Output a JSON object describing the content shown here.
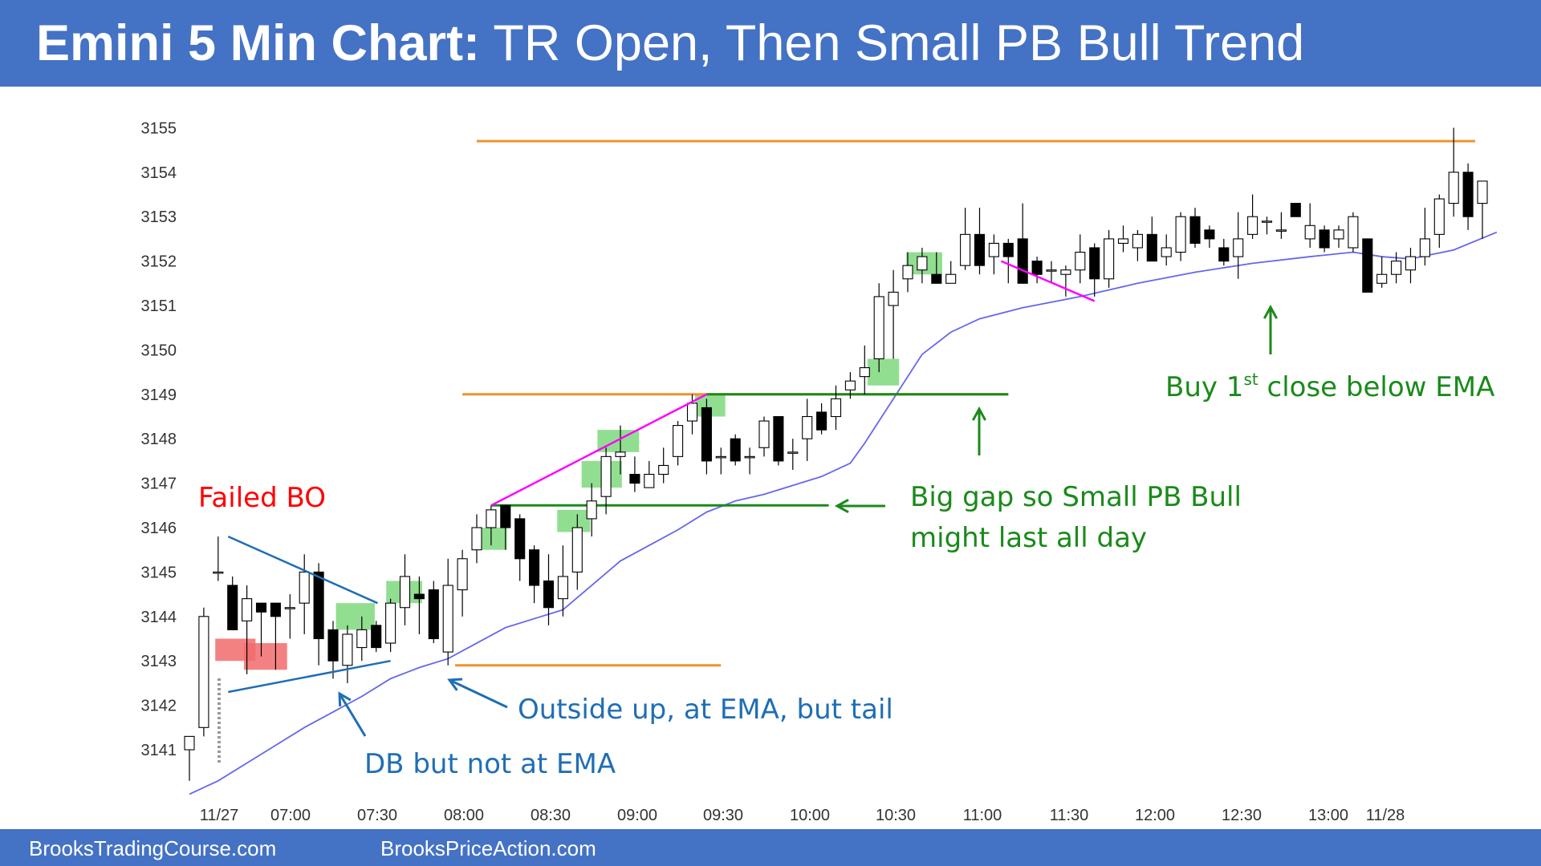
{
  "title": {
    "bold": "Emini 5 Min Chart:",
    "rest": "TR Open, Then Small PB Bull Trend"
  },
  "footer": {
    "left": "BrooksTradingCourse.com",
    "right": "BrooksPriceAction.com"
  },
  "colors": {
    "banner": "#4472c4",
    "ema": "#6666ee",
    "orange": "#f0922c",
    "green": "#1a8a1a",
    "magenta": "#ff00ff",
    "blue_annotation": "#1f6eb5",
    "red_text": "#ff0000",
    "green_box": "#7ed87e",
    "red_box": "#f26b6b"
  },
  "chart_data": {
    "type": "candlestick",
    "ylim": [
      3140.5,
      3155.5
    ],
    "y_ticks": [
      3141,
      3142,
      3143,
      3144,
      3145,
      3146,
      3147,
      3148,
      3149,
      3150,
      3151,
      3152,
      3153,
      3154,
      3155
    ],
    "x_tick_labels": [
      "11/27",
      "07:00",
      "07:30",
      "08:00",
      "08:30",
      "09:00",
      "09:30",
      "10:00",
      "10:30",
      "11:00",
      "11:30",
      "12:00",
      "12:30",
      "13:00",
      "11/28"
    ],
    "grid": false,
    "candles": [
      {
        "o": 3141.0,
        "h": 3141.3,
        "l": 3140.3,
        "c": 3141.3
      },
      {
        "o": 3141.5,
        "h": 3144.2,
        "l": 3141.3,
        "c": 3144.0
      },
      {
        "o": 3145.0,
        "h": 3145.8,
        "l": 3144.8,
        "c": 3145.0
      },
      {
        "o": 3144.7,
        "h": 3144.9,
        "l": 3143.7,
        "c": 3143.7
      },
      {
        "o": 3143.9,
        "h": 3144.7,
        "l": 3142.7,
        "c": 3144.4
      },
      {
        "o": 3144.3,
        "h": 3144.3,
        "l": 3143.1,
        "c": 3144.1
      },
      {
        "o": 3144.3,
        "h": 3144.3,
        "l": 3142.8,
        "c": 3144.0
      },
      {
        "o": 3144.2,
        "h": 3144.5,
        "l": 3143.5,
        "c": 3144.2
      },
      {
        "o": 3144.3,
        "h": 3145.4,
        "l": 3143.6,
        "c": 3145.0
      },
      {
        "o": 3145.0,
        "h": 3145.2,
        "l": 3142.9,
        "c": 3143.5
      },
      {
        "o": 3143.7,
        "h": 3143.9,
        "l": 3142.6,
        "c": 3143.0
      },
      {
        "o": 3142.9,
        "h": 3143.8,
        "l": 3142.5,
        "c": 3143.6
      },
      {
        "o": 3143.3,
        "h": 3144.0,
        "l": 3143.0,
        "c": 3143.7
      },
      {
        "o": 3143.8,
        "h": 3143.9,
        "l": 3143.2,
        "c": 3143.3
      },
      {
        "o": 3143.4,
        "h": 3144.4,
        "l": 3143.2,
        "c": 3144.3
      },
      {
        "o": 3144.2,
        "h": 3145.4,
        "l": 3143.8,
        "c": 3144.9
      },
      {
        "o": 3144.5,
        "h": 3144.9,
        "l": 3143.6,
        "c": 3144.4
      },
      {
        "o": 3144.6,
        "h": 3144.8,
        "l": 3143.4,
        "c": 3143.5
      },
      {
        "o": 3143.2,
        "h": 3145.3,
        "l": 3142.9,
        "c": 3144.7
      },
      {
        "o": 3144.6,
        "h": 3145.5,
        "l": 3144.0,
        "c": 3145.3
      },
      {
        "o": 3145.5,
        "h": 3146.3,
        "l": 3145.2,
        "c": 3146.0
      },
      {
        "o": 3146.0,
        "h": 3146.5,
        "l": 3145.6,
        "c": 3146.4
      },
      {
        "o": 3146.5,
        "h": 3146.5,
        "l": 3145.5,
        "c": 3146.0
      },
      {
        "o": 3146.2,
        "h": 3146.3,
        "l": 3144.8,
        "c": 3145.3
      },
      {
        "o": 3145.5,
        "h": 3145.6,
        "l": 3144.3,
        "c": 3144.7
      },
      {
        "o": 3144.8,
        "h": 3145.4,
        "l": 3143.8,
        "c": 3144.2
      },
      {
        "o": 3144.4,
        "h": 3145.6,
        "l": 3144.0,
        "c": 3144.9
      },
      {
        "o": 3145.0,
        "h": 3146.3,
        "l": 3144.6,
        "c": 3146.0
      },
      {
        "o": 3146.2,
        "h": 3147.0,
        "l": 3145.8,
        "c": 3146.6
      },
      {
        "o": 3146.7,
        "h": 3147.8,
        "l": 3146.3,
        "c": 3147.6
      },
      {
        "o": 3147.6,
        "h": 3148.3,
        "l": 3147.2,
        "c": 3147.7
      },
      {
        "o": 3147.2,
        "h": 3147.6,
        "l": 3146.8,
        "c": 3147.0
      },
      {
        "o": 3146.9,
        "h": 3147.5,
        "l": 3146.9,
        "c": 3147.2
      },
      {
        "o": 3147.2,
        "h": 3147.8,
        "l": 3147.0,
        "c": 3147.4
      },
      {
        "o": 3147.6,
        "h": 3148.4,
        "l": 3147.4,
        "c": 3148.3
      },
      {
        "o": 3148.4,
        "h": 3149.0,
        "l": 3148.1,
        "c": 3148.8
      },
      {
        "o": 3148.7,
        "h": 3148.9,
        "l": 3147.2,
        "c": 3147.5
      },
      {
        "o": 3147.6,
        "h": 3147.8,
        "l": 3147.2,
        "c": 3147.6
      },
      {
        "o": 3148.0,
        "h": 3148.1,
        "l": 3147.4,
        "c": 3147.5
      },
      {
        "o": 3147.6,
        "h": 3147.8,
        "l": 3147.2,
        "c": 3147.6
      },
      {
        "o": 3147.8,
        "h": 3148.5,
        "l": 3147.6,
        "c": 3148.4
      },
      {
        "o": 3148.5,
        "h": 3148.5,
        "l": 3147.4,
        "c": 3147.5
      },
      {
        "o": 3147.7,
        "h": 3148.0,
        "l": 3147.3,
        "c": 3147.7
      },
      {
        "o": 3148.0,
        "h": 3148.9,
        "l": 3147.5,
        "c": 3148.5
      },
      {
        "o": 3148.6,
        "h": 3148.8,
        "l": 3148.1,
        "c": 3148.2
      },
      {
        "o": 3148.5,
        "h": 3149.2,
        "l": 3148.2,
        "c": 3148.9
      },
      {
        "o": 3149.1,
        "h": 3149.5,
        "l": 3148.9,
        "c": 3149.3
      },
      {
        "o": 3149.4,
        "h": 3150.1,
        "l": 3149.0,
        "c": 3149.6
      },
      {
        "o": 3149.8,
        "h": 3151.5,
        "l": 3149.5,
        "c": 3151.2
      },
      {
        "o": 3151.0,
        "h": 3151.8,
        "l": 3149.8,
        "c": 3151.3
      },
      {
        "o": 3151.6,
        "h": 3152.2,
        "l": 3151.3,
        "c": 3151.9
      },
      {
        "o": 3151.8,
        "h": 3152.3,
        "l": 3151.5,
        "c": 3152.1
      },
      {
        "o": 3151.7,
        "h": 3152.2,
        "l": 3151.5,
        "c": 3151.5
      },
      {
        "o": 3151.5,
        "h": 3152.0,
        "l": 3151.5,
        "c": 3151.7
      },
      {
        "o": 3151.9,
        "h": 3153.2,
        "l": 3151.8,
        "c": 3152.6
      },
      {
        "o": 3152.6,
        "h": 3153.2,
        "l": 3151.7,
        "c": 3151.9
      },
      {
        "o": 3152.1,
        "h": 3152.6,
        "l": 3151.7,
        "c": 3152.4
      },
      {
        "o": 3152.4,
        "h": 3152.5,
        "l": 3151.5,
        "c": 3152.1
      },
      {
        "o": 3152.5,
        "h": 3153.3,
        "l": 3151.5,
        "c": 3151.5
      },
      {
        "o": 3152.0,
        "h": 3152.1,
        "l": 3151.5,
        "c": 3151.7
      },
      {
        "o": 3151.8,
        "h": 3152.0,
        "l": 3151.5,
        "c": 3151.8
      },
      {
        "o": 3151.7,
        "h": 3151.9,
        "l": 3151.2,
        "c": 3151.8
      },
      {
        "o": 3151.8,
        "h": 3152.6,
        "l": 3151.5,
        "c": 3152.2
      },
      {
        "o": 3152.3,
        "h": 3152.4,
        "l": 3151.2,
        "c": 3151.6
      },
      {
        "o": 3151.6,
        "h": 3152.7,
        "l": 3151.4,
        "c": 3152.5
      },
      {
        "o": 3152.4,
        "h": 3152.8,
        "l": 3152.2,
        "c": 3152.5
      },
      {
        "o": 3152.3,
        "h": 3152.7,
        "l": 3152.0,
        "c": 3152.6
      },
      {
        "o": 3152.6,
        "h": 3153.0,
        "l": 3152.0,
        "c": 3152.0
      },
      {
        "o": 3152.1,
        "h": 3152.6,
        "l": 3151.9,
        "c": 3152.3
      },
      {
        "o": 3152.2,
        "h": 3153.1,
        "l": 3152.0,
        "c": 3153.0
      },
      {
        "o": 3153.0,
        "h": 3153.2,
        "l": 3152.3,
        "c": 3152.4
      },
      {
        "o": 3152.7,
        "h": 3152.8,
        "l": 3152.3,
        "c": 3152.5
      },
      {
        "o": 3152.3,
        "h": 3152.5,
        "l": 3151.9,
        "c": 3152.0
      },
      {
        "o": 3152.1,
        "h": 3153.1,
        "l": 3151.6,
        "c": 3152.5
      },
      {
        "o": 3152.6,
        "h": 3153.5,
        "l": 3152.5,
        "c": 3153.0
      },
      {
        "o": 3152.9,
        "h": 3153.0,
        "l": 3152.6,
        "c": 3152.9
      },
      {
        "o": 3152.7,
        "h": 3153.1,
        "l": 3152.5,
        "c": 3152.7
      },
      {
        "o": 3153.3,
        "h": 3153.3,
        "l": 3153.0,
        "c": 3153.0
      },
      {
        "o": 3152.5,
        "h": 3153.3,
        "l": 3152.3,
        "c": 3152.8
      },
      {
        "o": 3152.7,
        "h": 3152.8,
        "l": 3152.2,
        "c": 3152.3
      },
      {
        "o": 3152.5,
        "h": 3152.8,
        "l": 3152.3,
        "c": 3152.7
      },
      {
        "o": 3152.3,
        "h": 3153.1,
        "l": 3152.2,
        "c": 3153.0
      },
      {
        "o": 3152.5,
        "h": 3152.5,
        "l": 3151.3,
        "c": 3151.3
      },
      {
        "o": 3151.5,
        "h": 3152.1,
        "l": 3151.4,
        "c": 3151.7
      },
      {
        "o": 3151.7,
        "h": 3152.2,
        "l": 3151.5,
        "c": 3152.0
      },
      {
        "o": 3151.8,
        "h": 3152.3,
        "l": 3151.5,
        "c": 3152.1
      },
      {
        "o": 3152.1,
        "h": 3153.2,
        "l": 3151.9,
        "c": 3152.5
      },
      {
        "o": 3152.6,
        "h": 3153.5,
        "l": 3152.3,
        "c": 3153.4
      },
      {
        "o": 3153.3,
        "h": 3155.0,
        "l": 3153.0,
        "c": 3154.0
      },
      {
        "o": 3154.0,
        "h": 3154.2,
        "l": 3152.7,
        "c": 3153.0
      },
      {
        "o": 3153.3,
        "h": 3153.8,
        "l": 3152.5,
        "c": 3153.8
      }
    ],
    "ema": [
      [
        0,
        3140.0
      ],
      [
        2,
        3140.3
      ],
      [
        4,
        3140.7
      ],
      [
        6,
        3141.1
      ],
      [
        8,
        3141.5
      ],
      [
        10,
        3141.85
      ],
      [
        12,
        3142.2
      ],
      [
        14,
        3142.6
      ],
      [
        16,
        3142.85
      ],
      [
        18,
        3143.05
      ],
      [
        20,
        3143.4
      ],
      [
        22,
        3143.75
      ],
      [
        24,
        3143.95
      ],
      [
        26,
        3144.15
      ],
      [
        28,
        3144.7
      ],
      [
        30,
        3145.25
      ],
      [
        32,
        3145.6
      ],
      [
        34,
        3145.95
      ],
      [
        36,
        3146.35
      ],
      [
        38,
        3146.6
      ],
      [
        40,
        3146.75
      ],
      [
        42,
        3146.95
      ],
      [
        44,
        3147.15
      ],
      [
        46,
        3147.45
      ],
      [
        47,
        3147.9
      ],
      [
        49,
        3148.9
      ],
      [
        51,
        3149.9
      ],
      [
        53,
        3150.4
      ],
      [
        55,
        3150.7
      ],
      [
        58,
        3150.95
      ],
      [
        62,
        3151.2
      ],
      [
        66,
        3151.5
      ],
      [
        70,
        3151.75
      ],
      [
        74,
        3151.95
      ],
      [
        78,
        3152.1
      ],
      [
        81,
        3152.2
      ],
      [
        83,
        3152.1
      ],
      [
        85,
        3152.05
      ],
      [
        88,
        3152.25
      ],
      [
        91,
        3152.65
      ]
    ],
    "levels": [
      {
        "price": 3154.7,
        "from": 20,
        "to": 89.5,
        "color": "orange"
      },
      {
        "price": 3149.0,
        "from": 19,
        "to": 57,
        "color": "orange"
      },
      {
        "price": 3142.9,
        "from": 18.5,
        "to": 37,
        "color": "orange"
      },
      {
        "price": 3149.0,
        "from": 36,
        "to": 57,
        "color": "green"
      },
      {
        "price": 3146.5,
        "from": 21,
        "to": 44.5,
        "color": "green"
      }
    ],
    "green_boxes": [
      {
        "from": 10.2,
        "to": 12.9,
        "lo": 3143.7,
        "hi": 3144.3
      },
      {
        "from": 13.7,
        "to": 16.2,
        "lo": 3144.3,
        "hi": 3144.8
      },
      {
        "from": 19.8,
        "to": 22.1,
        "lo": 3145.5,
        "hi": 3146.0
      },
      {
        "from": 25.6,
        "to": 27.9,
        "lo": 3145.9,
        "hi": 3146.4
      },
      {
        "from": 27.3,
        "to": 30.1,
        "lo": 3146.9,
        "hi": 3147.5
      },
      {
        "from": 28.4,
        "to": 31.3,
        "lo": 3147.7,
        "hi": 3148.2
      },
      {
        "from": 35.2,
        "to": 37.3,
        "lo": 3148.5,
        "hi": 3149.0
      },
      {
        "from": 47.2,
        "to": 49.4,
        "lo": 3149.2,
        "hi": 3149.8
      },
      {
        "from": 49.9,
        "to": 52.4,
        "lo": 3151.7,
        "hi": 3152.2
      }
    ],
    "red_boxes": [
      {
        "from": 1.8,
        "to": 4.6,
        "lo": 3143.0,
        "hi": 3143.5
      },
      {
        "from": 3.8,
        "to": 6.8,
        "lo": 3142.8,
        "hi": 3143.4
      }
    ],
    "triangle": [
      [
        2.7,
        3145.8
      ],
      [
        2.7,
        3142.3
      ],
      [
        14.0,
        3143.0
      ],
      [
        13.1,
        3144.3
      ]
    ],
    "magenta_lines": [
      {
        "from": [
          21.0,
          3146.5
        ],
        "to": [
          36.0,
          3149.0
        ]
      },
      {
        "from": [
          56.5,
          3152.0
        ],
        "to": [
          63.0,
          3151.1
        ]
      }
    ],
    "annotations": {
      "failed_bo": "Failed BO",
      "db": "DB but not at EMA",
      "outside_up": "Outside up, at EMA, but tail",
      "big_gap_line1": "Big gap so Small PB Bull",
      "big_gap_line2": "might last all day",
      "buy_prefix": "Buy 1",
      "buy_sup": "st",
      "buy_suffix": " close below EMA"
    }
  }
}
